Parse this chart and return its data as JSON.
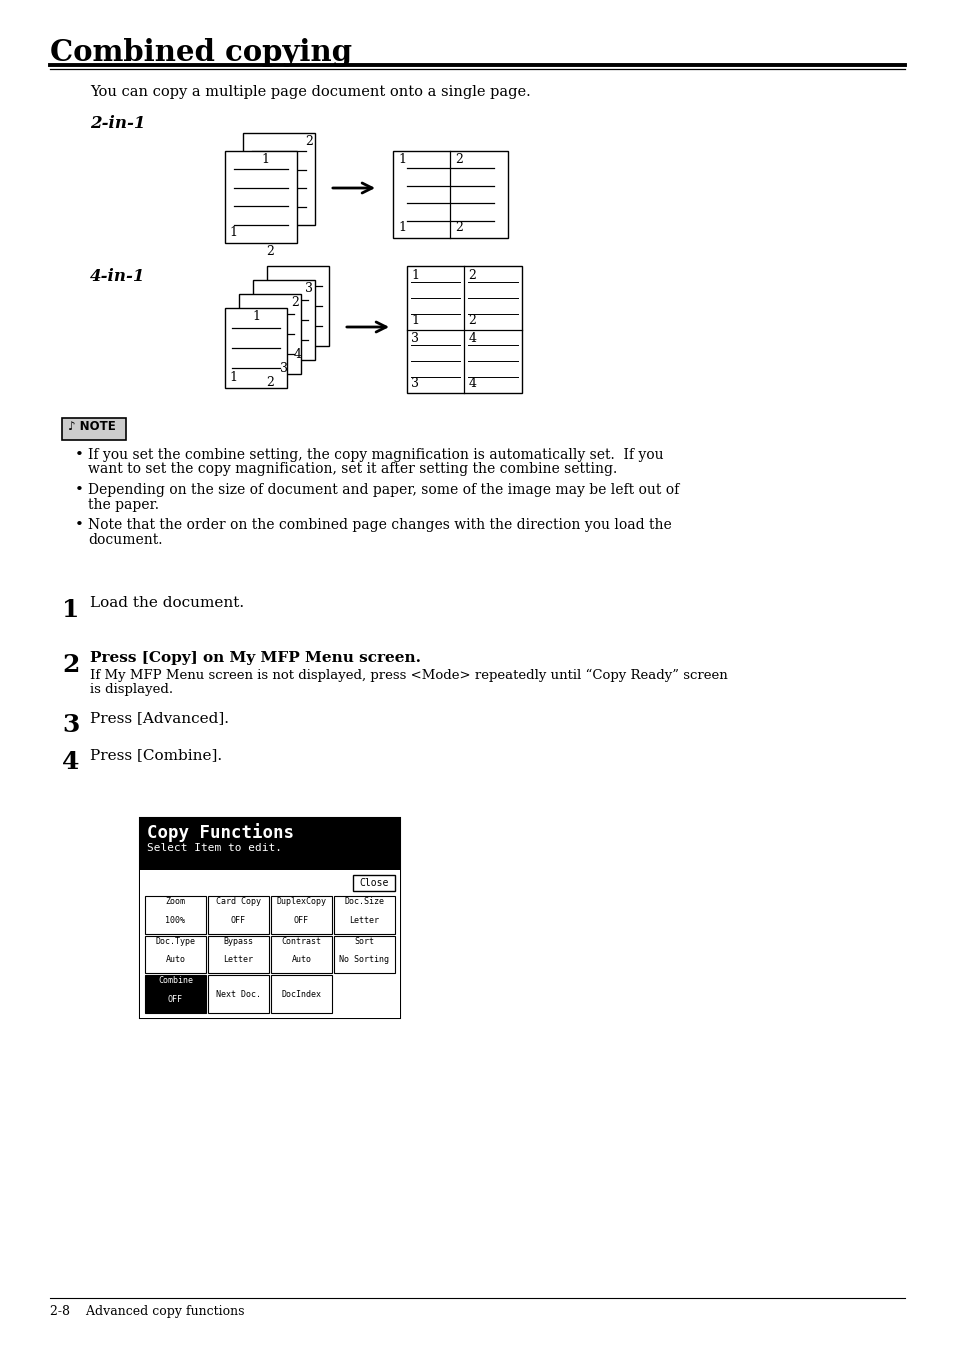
{
  "title": "Combined copying",
  "subtitle": "You can copy a multiple page document onto a single page.",
  "section_2in1": "2-in-1",
  "section_4in1": "4-in-1",
  "note_bullets": [
    [
      "If you set the combine setting, the copy magnification is automatically set.  If you",
      "want to set the copy magnification, set it after setting the combine setting."
    ],
    [
      "Depending on the size of document and paper, some of the image may be left out of",
      "the paper."
    ],
    [
      "Note that the order on the combined page changes with the direction you load the",
      "document."
    ]
  ],
  "steps": [
    {
      "num": "1",
      "text": "Load the document.",
      "bold": false
    },
    {
      "num": "2",
      "text": "Press [Copy] on My MFP Menu screen.",
      "bold": true,
      "sub": [
        "If My MFP Menu screen is not displayed, press <Mode> repeatedly until “Copy Ready” screen",
        "is displayed."
      ]
    },
    {
      "num": "3",
      "text": "Press [Advanced].",
      "bold": false
    },
    {
      "num": "4",
      "text": "Press [Combine].",
      "bold": false
    }
  ],
  "screen_title": "Copy Functions",
  "screen_subtitle": "Select Item to edit.",
  "footer": "2-8    Advanced copy functions",
  "bg_color": "#ffffff",
  "text_color": "#000000"
}
